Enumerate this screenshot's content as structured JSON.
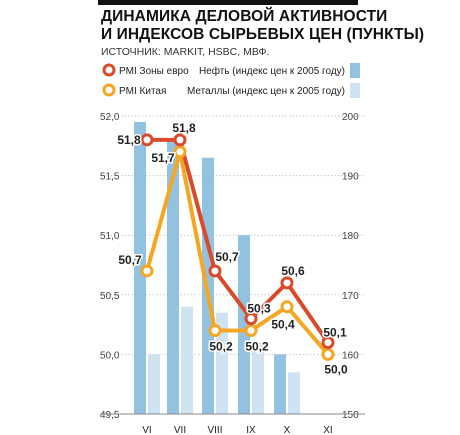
{
  "header": {
    "title": "ДИНАМИКА ДЕЛОВОЙ АКТИВНОСТИ\nИ ИНДЕКСОВ СЫРЬЕВЫХ ЦЕН (ПУНКТЫ)",
    "source": "ИСТОЧНИК: MARKIT, HSBC, МВФ."
  },
  "colors": {
    "pmi_euro": "#d94a2b",
    "pmi_china": "#f5a623",
    "oil": "#93c2e1",
    "metals": "#cfe2f1",
    "grid": "#c8c8c8"
  },
  "chart_data": {
    "type": "bar+line",
    "categories": [
      "VI",
      "VII",
      "VIII",
      "IX",
      "X",
      "XI"
    ],
    "y_left": {
      "ylim": [
        49.5,
        52.0
      ],
      "ticks": [
        "52,0",
        "51,5",
        "51,0",
        "50,5",
        "50,0",
        "49,5"
      ]
    },
    "y_right": {
      "ylim": [
        150,
        200
      ],
      "ticks": [
        "200",
        "190",
        "180",
        "170",
        "160",
        "150"
      ]
    },
    "bar_series": [
      {
        "name": "Нефть (индекс цен к 2005 году)",
        "axis": "right",
        "values": [
          199,
          196,
          193,
          180,
          160,
          null
        ]
      },
      {
        "name": "Металлы (индекс цен к 2005 году)",
        "axis": "right",
        "values": [
          160,
          168,
          167,
          162,
          157,
          null
        ]
      }
    ],
    "line_series": [
      {
        "name": "PMI Зоны евро",
        "axis": "left",
        "values": [
          51.8,
          51.8,
          50.7,
          50.3,
          50.6,
          50.1
        ],
        "labels": [
          "51,8",
          "51,8",
          "50,7",
          "50,3",
          "50,6",
          "50,1"
        ]
      },
      {
        "name": "PMI Китая",
        "axis": "left",
        "values": [
          50.7,
          51.7,
          50.2,
          50.2,
          50.4,
          50.0
        ],
        "labels": [
          "50,7",
          "51,7",
          "50,2",
          "50,2",
          "50,4",
          "50,0"
        ]
      }
    ],
    "grid": true,
    "legend_placement": "top"
  }
}
